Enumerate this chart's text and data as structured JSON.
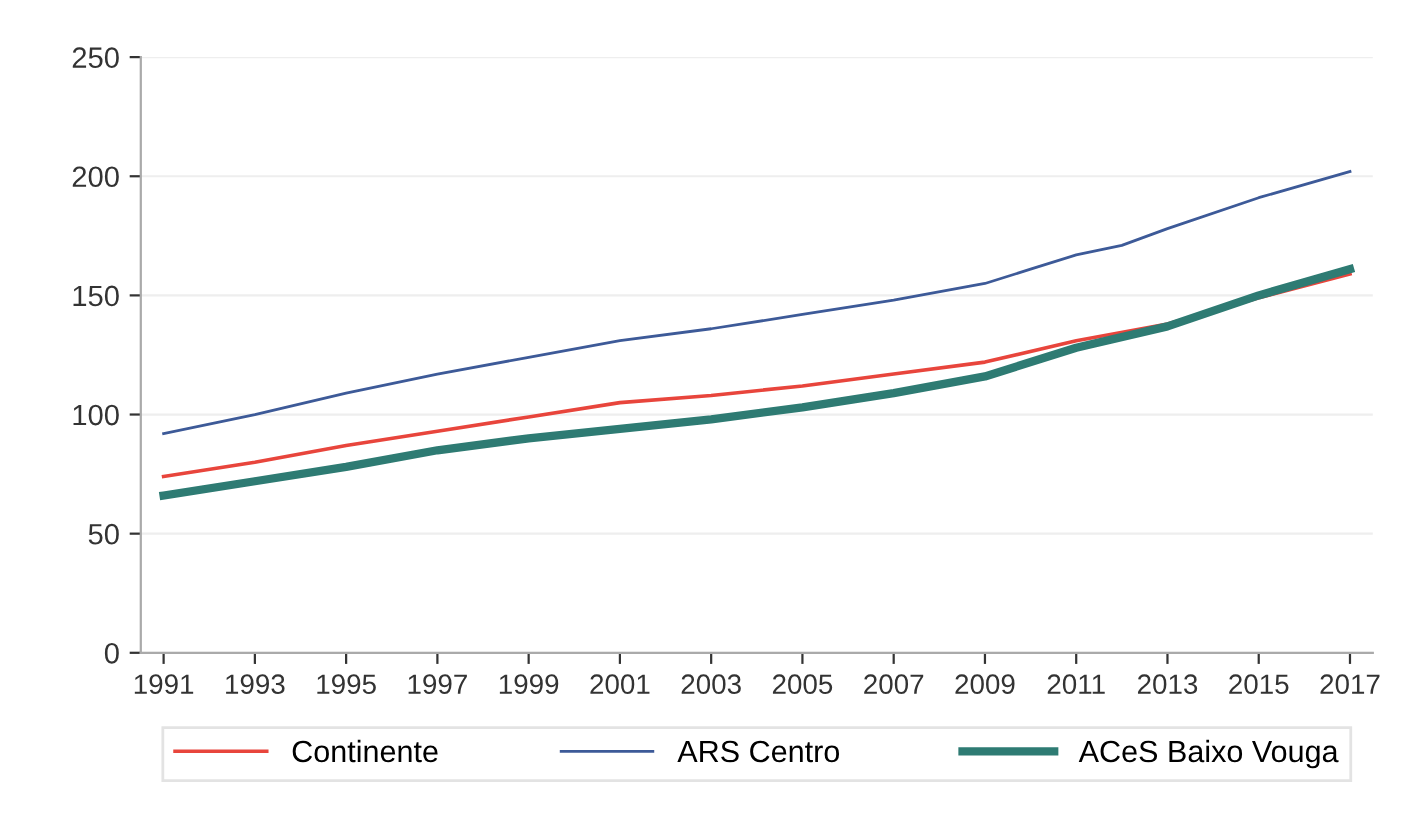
{
  "chart_data": {
    "type": "line",
    "x": [
      1991,
      1993,
      1995,
      1997,
      1999,
      2001,
      2003,
      2005,
      2007,
      2009,
      2011,
      2013,
      2015,
      2017
    ],
    "series": [
      {
        "name": "Continente",
        "color": "#e8453c",
        "values": [
          74,
          80,
          87,
          93,
          99,
          105,
          108,
          112,
          117,
          122,
          131,
          138,
          149,
          159
        ]
      },
      {
        "name": "ARS Centro",
        "color": "#3d5a98",
        "x": [
          1991,
          1993,
          1995,
          1997,
          1999,
          2001,
          2003,
          2005,
          2007,
          2009,
          2010,
          2011,
          2012,
          2013,
          2015,
          2017
        ],
        "values": [
          92,
          100,
          109,
          117,
          124,
          131,
          136,
          142,
          148,
          155,
          161,
          167,
          171,
          178,
          191,
          202
        ]
      },
      {
        "name": "ACeS Baixo Vouga",
        "color": "#2e7b73",
        "values": [
          66,
          72,
          78,
          85,
          90,
          94,
          98,
          103,
          109,
          116,
          128,
          137,
          150,
          161
        ]
      }
    ],
    "xlim": [
      1990.5,
      2017.5
    ],
    "xticks": [
      1991,
      1993,
      1995,
      1997,
      1999,
      2001,
      2003,
      2005,
      2007,
      2009,
      2011,
      2013,
      2015,
      2017
    ],
    "ylim": [
      0,
      250
    ],
    "yticks": [
      0,
      50,
      100,
      150,
      200,
      250
    ],
    "grid": "y",
    "legend": "bottom",
    "marker": "none",
    "line_style": "solid"
  }
}
